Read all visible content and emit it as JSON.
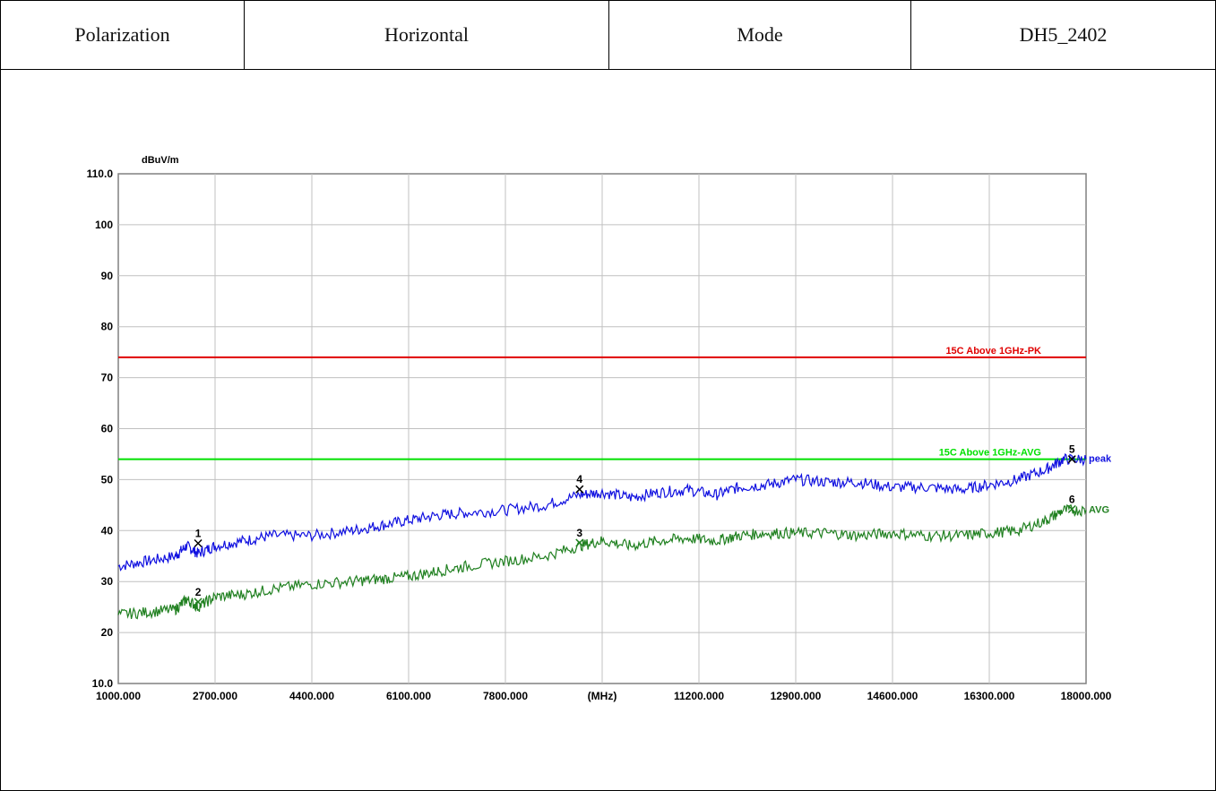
{
  "header": {
    "polarization_label": "Polarization",
    "polarization_value": "Horizontal",
    "mode_label": "Mode",
    "mode_value": "DH5_2402"
  },
  "chart_data": {
    "type": "line",
    "ylabel": "dBuV/m",
    "xunit": "(MHz)",
    "xlim": [
      1000,
      18000
    ],
    "ylim": [
      10,
      110
    ],
    "x_ticks": [
      "1000.000",
      "2700.000",
      "4400.000",
      "6100.000",
      "7800.000",
      "(MHz)",
      "11200.000",
      "12900.000",
      "14600.000",
      "16300.000",
      "18000.000"
    ],
    "y_ticks": [
      "10.0",
      "20",
      "30",
      "40",
      "50",
      "60",
      "70",
      "80",
      "90",
      "100",
      "110.0"
    ],
    "grid": true,
    "limit_lines": [
      {
        "name": "15C  Above 1GHz-PK",
        "y": 74,
        "color": "#e00000"
      },
      {
        "name": "15C  Above 1GHz-AVG",
        "y": 54,
        "color": "#00e000"
      }
    ],
    "series": [
      {
        "name": "peak",
        "color": "#1010e0",
        "x": [
          1000,
          1500,
          2000,
          2200,
          2400,
          2700,
          3200,
          3700,
          4400,
          5100,
          5600,
          6100,
          6600,
          7100,
          7800,
          8500,
          9100,
          9500,
          10000,
          10500,
          11000,
          11500,
          11900,
          12400,
          12900,
          13500,
          14000,
          14600,
          15200,
          15800,
          16300,
          16800,
          17300,
          17600,
          18000
        ],
        "y": [
          33,
          34,
          35,
          37,
          35.5,
          37,
          38,
          39,
          39,
          40,
          41,
          42,
          43,
          43.5,
          44,
          45,
          47,
          47.5,
          46.5,
          47.5,
          48,
          47,
          48.5,
          49,
          50,
          49.5,
          49.5,
          48.5,
          48.5,
          48,
          49,
          50,
          52,
          54,
          54
        ]
      },
      {
        "name": "AVG",
        "color": "#208020",
        "x": [
          1000,
          1500,
          2000,
          2200,
          2400,
          2700,
          3200,
          3700,
          4400,
          5100,
          5600,
          6100,
          6600,
          7100,
          7800,
          8500,
          9100,
          9500,
          10000,
          10500,
          11000,
          11500,
          11900,
          12400,
          12900,
          13500,
          14000,
          14600,
          15200,
          15800,
          16300,
          16800,
          17300,
          17600,
          18000
        ],
        "y": [
          23.5,
          24,
          24.5,
          26.5,
          25,
          27,
          27.5,
          28.5,
          29.5,
          30,
          30.5,
          31,
          32,
          33,
          34,
          35,
          37,
          38,
          37,
          38,
          38.5,
          38,
          39,
          39.5,
          39.5,
          39.5,
          39,
          39.5,
          39,
          39,
          39.5,
          40,
          42,
          44,
          44
        ]
      }
    ],
    "markers": [
      {
        "label": "1",
        "x": 2402,
        "y": 37.5,
        "color": "#000000"
      },
      {
        "label": "2",
        "x": 2402,
        "y": 26.0,
        "color": "#208020"
      },
      {
        "label": "3",
        "x": 9103,
        "y": 37.6,
        "color": "#208020"
      },
      {
        "label": "4",
        "x": 9103,
        "y": 48.1,
        "color": "#000000"
      },
      {
        "label": "5",
        "x": 17752,
        "y": 54.0,
        "color": "#000000"
      },
      {
        "label": "6",
        "x": 17752,
        "y": 44.2,
        "color": "#208020"
      }
    ]
  }
}
